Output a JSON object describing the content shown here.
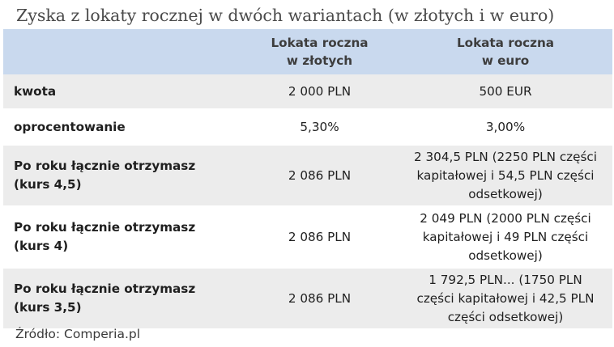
{
  "title": "Zyska z lokaty rocznej w dwóch wariantach (w złotych i w euro)",
  "table": {
    "headers": [
      {
        "l1": "",
        "l2": ""
      },
      {
        "l1": "Lokata roczna",
        "l2": "w złotych"
      },
      {
        "l1": "Lokata roczna",
        "l2": "w euro"
      }
    ],
    "rows": [
      {
        "label": {
          "l1": "kwota",
          "l2": ""
        },
        "pln": {
          "l1": "2 000 PLN"
        },
        "eur": {
          "l1": "500 EUR",
          "l2": "",
          "l3": ""
        }
      },
      {
        "label": {
          "l1": "oprocentowanie",
          "l2": ""
        },
        "pln": {
          "l1": "5,30%"
        },
        "eur": {
          "l1": "3,00%",
          "l2": "",
          "l3": ""
        }
      },
      {
        "label": {
          "l1": "Po roku łącznie otrzymasz",
          "l2": "(kurs 4,5)"
        },
        "pln": {
          "l1": "2 086 PLN"
        },
        "eur": {
          "l1": "2 304,5 PLN (2250 PLN części",
          "l2": "kapitałowej i 54,5 PLN części",
          "l3": "odsetkowej)"
        }
      },
      {
        "label": {
          "l1": "Po roku łącznie otrzymasz",
          "l2": "(kurs 4)"
        },
        "pln": {
          "l1": "2 086 PLN"
        },
        "eur": {
          "l1": "2 049 PLN (2000 PLN części",
          "l2": "kapitałowej i 49 PLN części",
          "l3": "odsetkowej)"
        }
      },
      {
        "label": {
          "l1": "Po roku łącznie otrzymasz",
          "l2": "(kurs 3,5)"
        },
        "pln": {
          "l1": "2 086 PLN"
        },
        "eur": {
          "l1": "1 792,5 PLN... (1750 PLN",
          "l2": "części kapitałowej i 42,5 PLN",
          "l3": "części odsetkowej)"
        }
      }
    ]
  },
  "source": "Źródło: Comperia.pl"
}
